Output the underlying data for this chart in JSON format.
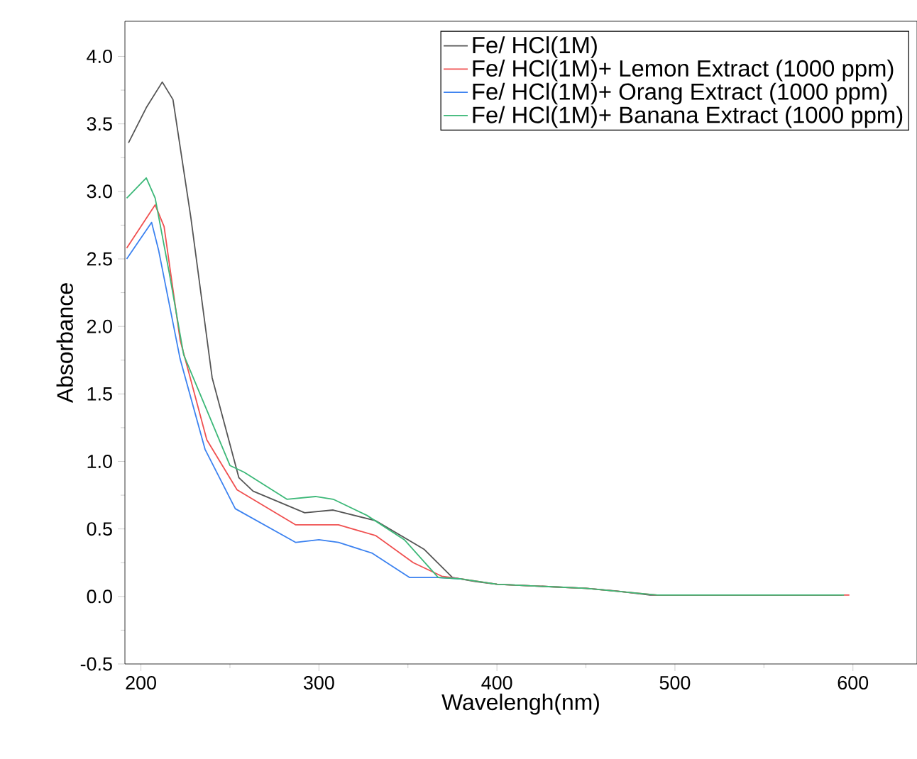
{
  "chart_data": {
    "type": "line",
    "xlabel": "Wavelengh(nm)",
    "ylabel": "Absorbance",
    "xlim": [
      191,
      636
    ],
    "ylim": [
      -0.5,
      4.26
    ],
    "xticks": [
      200,
      300,
      400,
      500,
      600
    ],
    "yticks": [
      {
        "value": -0.5,
        "label": "-0.5"
      },
      {
        "value": 0,
        "label": "0.0"
      },
      {
        "value": 0.5,
        "label": "0.5"
      },
      {
        "value": 1,
        "label": "1.0"
      },
      {
        "value": 1.5,
        "label": "1.5"
      },
      {
        "value": 2,
        "label": "2.0"
      },
      {
        "value": 2.5,
        "label": "2.5"
      },
      {
        "value": 3,
        "label": "3.0"
      },
      {
        "value": 3.5,
        "label": "3.5"
      },
      {
        "value": 4,
        "label": "4.0"
      }
    ],
    "legend": "top right",
    "grid": false,
    "marker": "none",
    "line_style": "solid",
    "series": [
      {
        "name": "Fe/  HCl(1M)",
        "color": "#555555",
        "x": [
          193,
          203,
          212,
          218,
          228,
          240,
          255,
          263,
          292,
          308,
          332,
          359,
          375,
          388,
          400,
          450,
          467,
          486,
          594
        ],
        "values": [
          3.36,
          3.62,
          3.81,
          3.68,
          2.81,
          1.62,
          0.88,
          0.78,
          0.62,
          0.64,
          0.56,
          0.35,
          0.14,
          0.11,
          0.09,
          0.06,
          0.04,
          0.01,
          0.01
        ]
      },
      {
        "name": "Fe/  HCl(1M)+  Lemon  Extract  (1000  ppm)",
        "color": "#f05050",
        "x": [
          192,
          208,
          213,
          222,
          237,
          254,
          287,
          311,
          332,
          353,
          369,
          380,
          400,
          450,
          490,
          598
        ],
        "values": [
          2.58,
          2.9,
          2.74,
          1.9,
          1.16,
          0.79,
          0.53,
          0.53,
          0.45,
          0.25,
          0.15,
          0.13,
          0.09,
          0.06,
          0.01,
          0.01
        ]
      },
      {
        "name": "Fe/  HCl(1M)+  Orang  Extract  (1000  ppm)",
        "color": "#3c82f0",
        "x": [
          192,
          206,
          210,
          222,
          236,
          253,
          287,
          300,
          311,
          330,
          351,
          367,
          380
        ],
        "values": [
          2.5,
          2.77,
          2.56,
          1.76,
          1.09,
          0.65,
          0.4,
          0.42,
          0.4,
          0.32,
          0.14,
          0.14,
          0.13
        ]
      },
      {
        "name": "Fe/  HCl(1M)+  Banana  Extract  (1000  ppm)",
        "color": "#3cb878",
        "x": [
          192,
          203,
          208,
          216,
          224,
          250,
          258,
          282,
          298,
          308,
          327,
          348,
          367,
          380,
          400,
          450,
          490,
          595
        ],
        "values": [
          2.95,
          3.1,
          2.95,
          2.39,
          1.79,
          0.97,
          0.92,
          0.72,
          0.74,
          0.72,
          0.6,
          0.42,
          0.14,
          0.13,
          0.09,
          0.06,
          0.01,
          0.01
        ]
      }
    ]
  }
}
